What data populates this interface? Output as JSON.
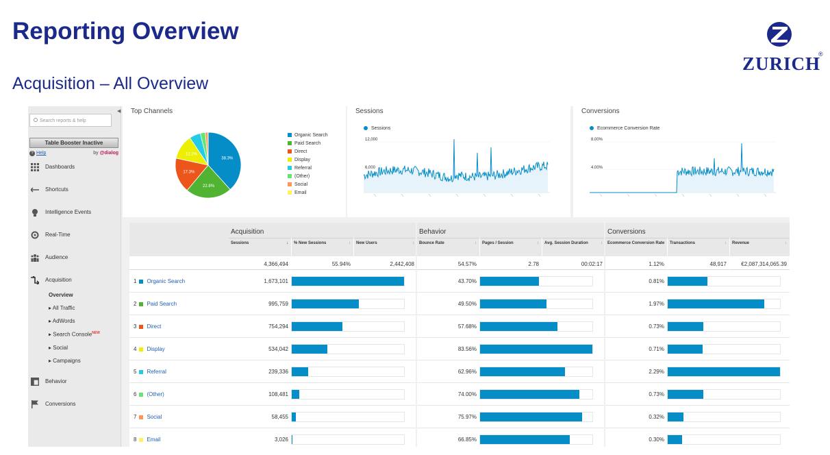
{
  "slide": {
    "title": "Reporting Overview",
    "subtitle": "Acquisition – All Overview",
    "logo_text": "ZURICH",
    "logo_mark": "®"
  },
  "sidebar": {
    "search_placeholder": "Search reports & help",
    "booster_button": "Table Booster Inactive",
    "help_link": "Help",
    "by_text": "by",
    "by_brand": "@dialog",
    "items": [
      {
        "label": "Dashboards",
        "icon": "dashboard-icon"
      },
      {
        "label": "Shortcuts",
        "icon": "shortcut-icon"
      },
      {
        "label": "Intelligence Events",
        "icon": "lightbulb-icon"
      },
      {
        "label": "Real-Time",
        "icon": "realtime-icon"
      },
      {
        "label": "Audience",
        "icon": "audience-icon"
      },
      {
        "label": "Acquisition",
        "icon": "acquisition-icon"
      },
      {
        "label": "Behavior",
        "icon": "behavior-icon"
      },
      {
        "label": "Conversions",
        "icon": "flag-icon"
      }
    ],
    "acquisition_sub": [
      "Overview",
      "▸ All Traffic",
      "▸ AdWords",
      "▸ Search Console",
      "▸ Social",
      "▸ Campaigns"
    ],
    "new_badge": "NEW"
  },
  "panels": {
    "channels_title": "Top Channels",
    "sessions_title": "Sessions",
    "sessions_legend": "Sessions",
    "sessions_ticks": [
      "12,000",
      "6,000"
    ],
    "conv_title": "Conversions",
    "conv_legend": "Ecommerce Conversion Rate",
    "conv_ticks": [
      "8.00%",
      "4.00%"
    ]
  },
  "chart_data": [
    {
      "type": "pie",
      "title": "Top Channels",
      "labels": [
        "Organic Search",
        "Paid Search",
        "Direct",
        "Display",
        "Referral",
        "(Other)",
        "Social",
        "Email"
      ],
      "values": [
        38.3,
        22.8,
        17.3,
        12.2,
        5.5,
        2.5,
        1.3,
        0.1
      ],
      "slice_labels": [
        "38.3%",
        "22.8%",
        "17.3%",
        "12.2%",
        "",
        "",
        "",
        ""
      ],
      "colors": [
        "#058dc7",
        "#50b432",
        "#ed561b",
        "#edef00",
        "#24cbe5",
        "#64e572",
        "#ff9655",
        "#fff263"
      ],
      "legend": "right"
    },
    {
      "type": "line",
      "title": "Sessions",
      "series": [
        {
          "name": "Sessions",
          "color": "#058dc7"
        }
      ],
      "yticks": [
        "12,000",
        "6,000"
      ],
      "ylim": [
        0,
        12000
      ]
    },
    {
      "type": "line",
      "title": "Conversions",
      "series": [
        {
          "name": "Ecommerce Conversion Rate",
          "color": "#058dc7"
        }
      ],
      "yticks": [
        "8.00%",
        "4.00%"
      ],
      "ylim": [
        0,
        8
      ]
    }
  ],
  "table": {
    "groups": [
      "Acquisition",
      "Behavior",
      "Conversions"
    ],
    "columns": [
      "Sessions",
      "% New Sessions",
      "New Users",
      "Bounce Rate",
      "Pages / Session",
      "Avg. Session Duration",
      "Ecommerce Conversion Rate",
      "Transactions",
      "Revenue"
    ],
    "sort_arrow": "↓",
    "totals": [
      "4,366,494",
      "55.94%",
      "2,442,408",
      "54.57%",
      "2.78",
      "00:02:17",
      "1.12%",
      "48,917",
      "€2,087,314,065.39"
    ],
    "rows": [
      {
        "num": "1",
        "channel": "Organic Search",
        "sessions": "1,673,101",
        "sessions_share": 0.383,
        "bounce": "43.70%",
        "bounce_value": 43.7,
        "conv": "0.81%",
        "conv_value": 0.81
      },
      {
        "num": "2",
        "channel": "Paid Search",
        "sessions": "995,759",
        "sessions_share": 0.228,
        "bounce": "49.50%",
        "bounce_value": 49.5,
        "conv": "1.97%",
        "conv_value": 1.97
      },
      {
        "num": "3",
        "channel": "Direct",
        "sessions": "754,294",
        "sessions_share": 0.173,
        "bounce": "57.68%",
        "bounce_value": 57.68,
        "conv": "0.73%",
        "conv_value": 0.73
      },
      {
        "num": "4",
        "channel": "Display",
        "sessions": "534,042",
        "sessions_share": 0.122,
        "bounce": "83.56%",
        "bounce_value": 83.56,
        "conv": "0.71%",
        "conv_value": 0.71
      },
      {
        "num": "5",
        "channel": "Referral",
        "sessions": "239,336",
        "sessions_share": 0.055,
        "bounce": "62.96%",
        "bounce_value": 62.96,
        "conv": "2.29%",
        "conv_value": 2.29
      },
      {
        "num": "6",
        "channel": "(Other)",
        "sessions": "108,481",
        "sessions_share": 0.025,
        "bounce": "74.00%",
        "bounce_value": 74.0,
        "conv": "0.73%",
        "conv_value": 0.73
      },
      {
        "num": "7",
        "channel": "Social",
        "sessions": "58,455",
        "sessions_share": 0.013,
        "bounce": "75.97%",
        "bounce_value": 75.97,
        "conv": "0.32%",
        "conv_value": 0.32
      },
      {
        "num": "8",
        "channel": "Email",
        "sessions": "3,026",
        "sessions_share": 0.001,
        "bounce": "66.85%",
        "bounce_value": 66.85,
        "conv": "0.30%",
        "conv_value": 0.3
      }
    ]
  },
  "colors": {
    "brand": "#1b2a8a",
    "ga_blue": "#058dc7",
    "link": "#1f5fb4"
  }
}
